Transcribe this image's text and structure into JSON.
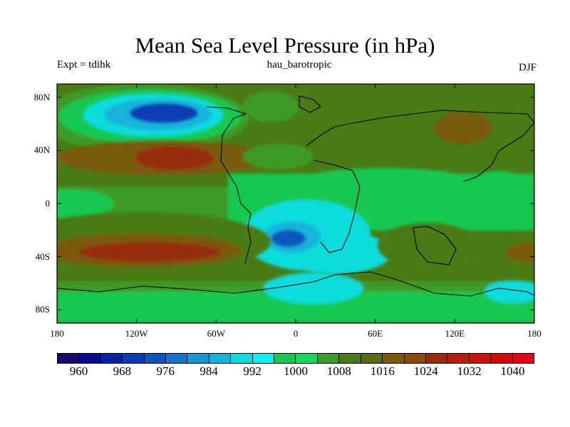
{
  "title": "Mean Sea Level Pressure (in hPa)",
  "left_label": "Expt = tdihk",
  "center_label": "hau_barotropic",
  "right_label": "DJF",
  "y_axis": {
    "ticks": [
      "80N",
      "40N",
      "0",
      "40S",
      "80S"
    ],
    "values": [
      80,
      40,
      0,
      -40,
      -80
    ],
    "range": [
      -90,
      90
    ]
  },
  "x_axis": {
    "ticks": [
      "180",
      "120W",
      "60W",
      "0",
      "60E",
      "120E",
      "180"
    ],
    "values": [
      -180,
      -120,
      -60,
      0,
      60,
      120,
      180
    ],
    "range": [
      -180,
      180
    ]
  },
  "colorbar": {
    "colors": [
      "#1a0a6e",
      "#0a0a8c",
      "#0a22a6",
      "#0a3cb4",
      "#0a56be",
      "#1478c8",
      "#1496d2",
      "#14b4dc",
      "#0adcdc",
      "#0af0f0",
      "#14c850",
      "#14dc5a",
      "#3c9a28",
      "#4a7a14",
      "#5a6a10",
      "#7a5a0a",
      "#8c4a0a",
      "#962d0a",
      "#b41e0a",
      "#c8140a",
      "#d20a0a",
      "#e6001e"
    ],
    "labels": [
      "960",
      "968",
      "976",
      "984",
      "992",
      "1000",
      "1008",
      "1016",
      "1024",
      "1032",
      "1040"
    ]
  },
  "fields": {
    "background": "#4a7a14",
    "mid_green": "#3c9a28",
    "bright_green": "#14c850",
    "pale_cyan": "#0adcdc",
    "cyan": "#0af0f0",
    "light_blue": "#14b4dc",
    "blue": "#0a56be",
    "brown": "#7a5a0a",
    "red_brown": "#962d0a"
  }
}
